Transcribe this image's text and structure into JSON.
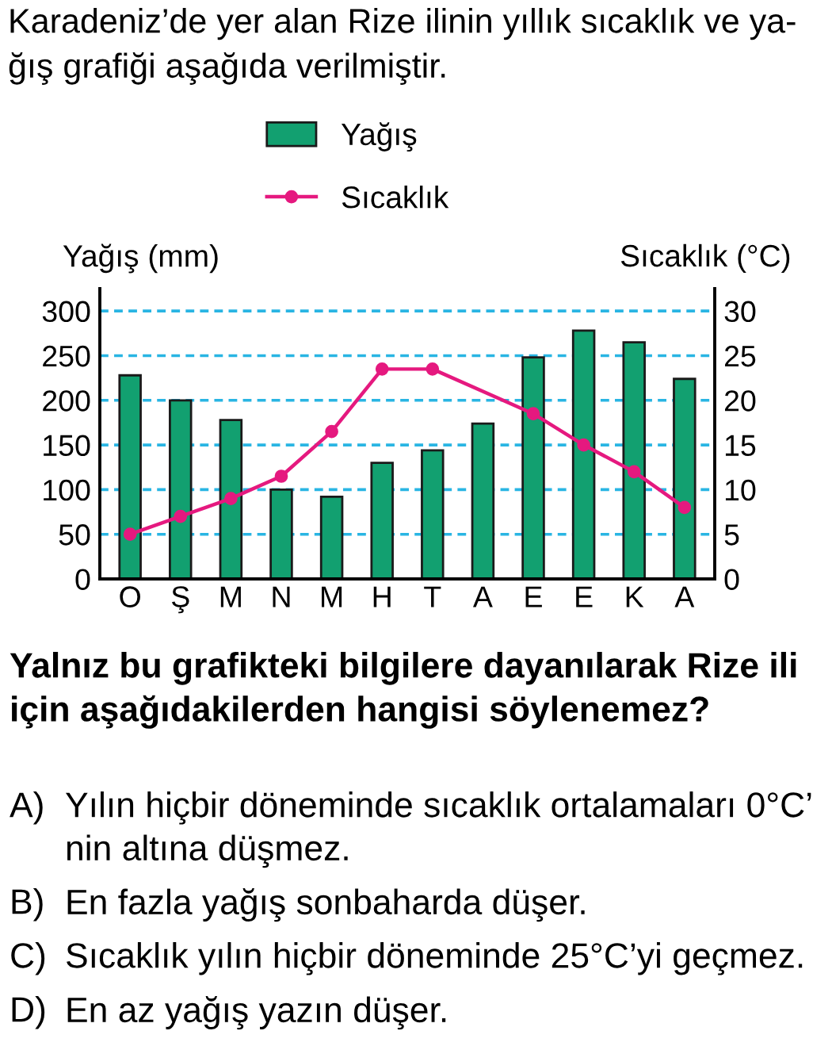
{
  "chart_data": {
    "type": "bar",
    "title": "Karadeniz’de yer alan Rize ilinin yıllık sıcaklık ve ya-\nğış grafiği aşağıda verilmiştir.",
    "ylabel": "Yağış (mm)",
    "y2label": "Sıcaklık (°C)",
    "categories": [
      "O",
      "Ş",
      "M",
      "N",
      "M",
      "H",
      "T",
      "A",
      "E",
      "E",
      "K",
      "A"
    ],
    "series": [
      {
        "name": "Yağış",
        "type": "bar",
        "color": "#12a070",
        "values": [
          228,
          200,
          178,
          100,
          92,
          130,
          144,
          174,
          248,
          278,
          265,
          224
        ]
      },
      {
        "name": "Sıcaklık",
        "type": "line",
        "axis": "y2",
        "color": "#e5197f",
        "marker": "circle",
        "values": [
          5,
          7,
          9,
          11.5,
          16.5,
          23.5,
          23.5,
          null,
          18.5,
          15,
          12,
          8
        ]
      }
    ],
    "ylim": [
      0,
      325
    ],
    "yticks": [
      0,
      50,
      100,
      150,
      200,
      250,
      300
    ],
    "y2lim": [
      0,
      32.5
    ],
    "y2ticks": [
      0,
      5,
      10,
      15,
      20,
      25,
      30
    ],
    "grid": "y",
    "legend": "top",
    "annotations": [
      "Yalnız bu grafikteki bilgilere dayanılarak Rize ili\niçin aşağıdakilerden hangisi söylenemez?",
      "A) Yılın hiçbir döneminde sıcaklık ortalamaları 0°C’\nnin altına düşmez.",
      "B) En fazla yağış sonbaharda düşer.",
      "C) Sıcaklık yılın hiçbir döneminde 25°C’yi geçmez.",
      "D) En az yağış yazın düşer."
    ]
  }
}
